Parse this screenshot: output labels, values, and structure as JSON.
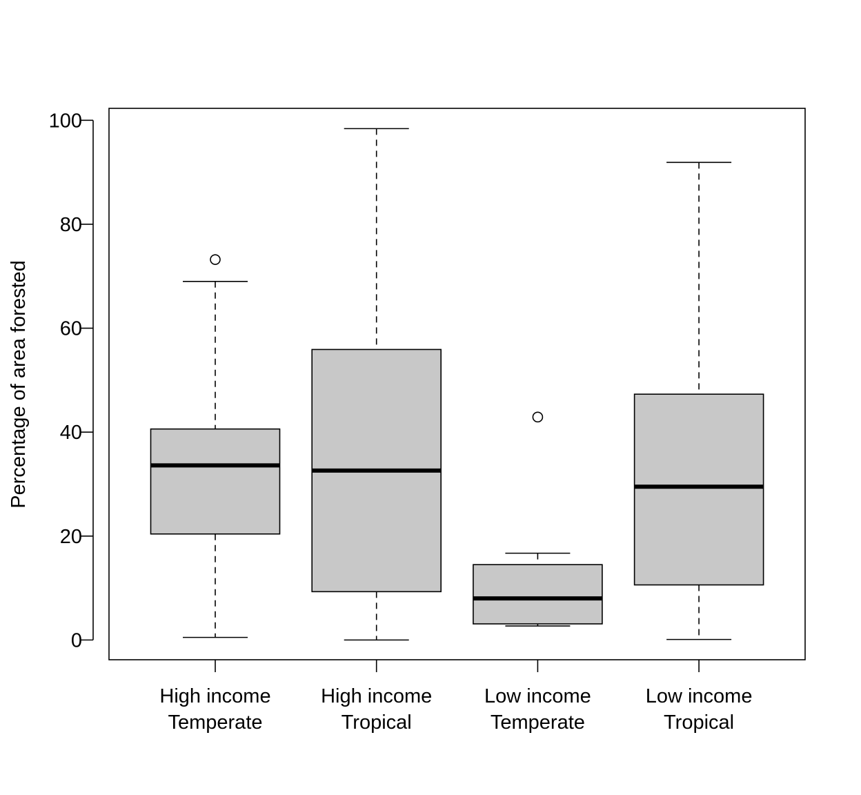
{
  "chart_data": {
    "type": "boxplot",
    "title": "",
    "xlabel": "",
    "ylabel": "Percentage of area forested",
    "ylim": [
      -3.8,
      102.3
    ],
    "y_ticks": [
      "0",
      "20",
      "40",
      "60",
      "80",
      "100"
    ],
    "grid": false,
    "box_fill": "#c8c8c8",
    "categories": [
      {
        "line1": "High income",
        "line2": "Temperate",
        "whisker_low": 0.5,
        "q1": 20.4,
        "median": 33.6,
        "q3": 40.6,
        "whisker_high": 69.0,
        "outliers": [
          73.2
        ]
      },
      {
        "line1": "High income",
        "line2": "Tropical",
        "whisker_low": 0.0,
        "q1": 9.3,
        "median": 32.6,
        "q3": 55.9,
        "whisker_high": 98.4,
        "outliers": []
      },
      {
        "line1": "Low income",
        "line2": "Temperate",
        "whisker_low": 2.7,
        "q1": 3.1,
        "median": 8.0,
        "q3": 14.5,
        "whisker_high": 16.7,
        "outliers": [
          42.9
        ]
      },
      {
        "line1": "Low income",
        "line2": "Tropical",
        "whisker_low": 0.1,
        "q1": 10.6,
        "median": 29.5,
        "q3": 47.3,
        "whisker_high": 91.9,
        "outliers": []
      }
    ]
  }
}
